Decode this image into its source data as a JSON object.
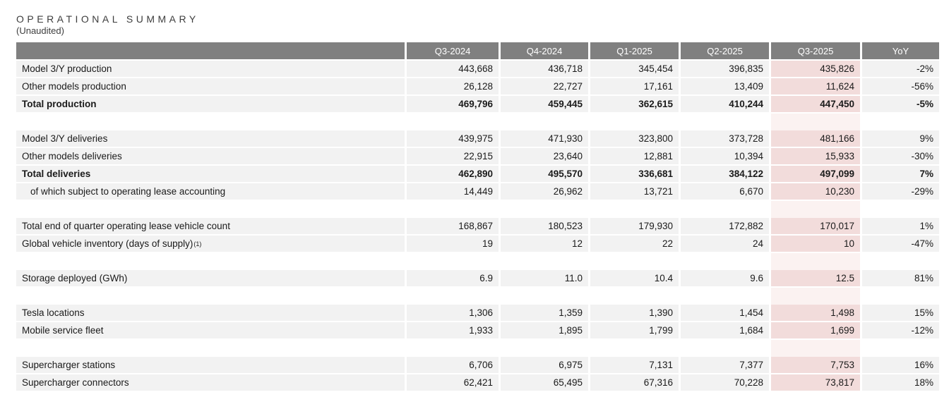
{
  "title": "OPERATIONAL SUMMARY",
  "subtitle": "(Unaudited)",
  "columns": [
    "Q3-2024",
    "Q4-2024",
    "Q1-2025",
    "Q2-2025",
    "Q3-2025",
    "YoY"
  ],
  "highlight_column": "Q3-2025",
  "colors": {
    "header_bg": "#808080",
    "row_bg": "#f2f2f2",
    "highlight_bg": "#f2dcdb",
    "highlight_gap_bg": "#fbf2f1",
    "header_text": "#ffffff",
    "body_text": "#1a1a1a"
  },
  "sections": [
    {
      "rows": [
        {
          "label": "Model 3/Y production",
          "bold": false,
          "indent": false,
          "values": [
            "443,668",
            "436,718",
            "345,454",
            "396,835",
            "435,826",
            "-2%"
          ]
        },
        {
          "label": "Other models production",
          "bold": false,
          "indent": false,
          "values": [
            "26,128",
            "22,727",
            "17,161",
            "13,409",
            "11,624",
            "-56%"
          ]
        },
        {
          "label": "Total production",
          "bold": true,
          "indent": false,
          "values": [
            "469,796",
            "459,445",
            "362,615",
            "410,244",
            "447,450",
            "-5%"
          ]
        }
      ]
    },
    {
      "rows": [
        {
          "label": "Model 3/Y deliveries",
          "bold": false,
          "indent": false,
          "values": [
            "439,975",
            "471,930",
            "323,800",
            "373,728",
            "481,166",
            "9%"
          ]
        },
        {
          "label": "Other models deliveries",
          "bold": false,
          "indent": false,
          "values": [
            "22,915",
            "23,640",
            "12,881",
            "10,394",
            "15,933",
            "-30%"
          ]
        },
        {
          "label": "Total deliveries",
          "bold": true,
          "indent": false,
          "values": [
            "462,890",
            "495,570",
            "336,681",
            "384,122",
            "497,099",
            "7%"
          ]
        },
        {
          "label": "of which subject to operating lease accounting",
          "bold": false,
          "indent": true,
          "values": [
            "14,449",
            "26,962",
            "13,721",
            "6,670",
            "10,230",
            "-29%"
          ]
        }
      ]
    },
    {
      "rows": [
        {
          "label": "Total end of quarter operating lease vehicle count",
          "bold": false,
          "indent": false,
          "values": [
            "168,867",
            "180,523",
            "179,930",
            "172,882",
            "170,017",
            "1%"
          ]
        },
        {
          "label": "Global vehicle inventory (days of supply)",
          "sup": "(1)",
          "bold": false,
          "indent": false,
          "values": [
            "19",
            "12",
            "22",
            "24",
            "10",
            "-47%"
          ]
        }
      ]
    },
    {
      "rows": [
        {
          "label": "Storage deployed (GWh)",
          "bold": false,
          "indent": false,
          "values": [
            "6.9",
            "11.0",
            "10.4",
            "9.6",
            "12.5",
            "81%"
          ]
        }
      ]
    },
    {
      "rows": [
        {
          "label": "Tesla locations",
          "bold": false,
          "indent": false,
          "values": [
            "1,306",
            "1,359",
            "1,390",
            "1,454",
            "1,498",
            "15%"
          ]
        },
        {
          "label": "Mobile service fleet",
          "bold": false,
          "indent": false,
          "values": [
            "1,933",
            "1,895",
            "1,799",
            "1,684",
            "1,699",
            "-12%"
          ]
        }
      ]
    },
    {
      "rows": [
        {
          "label": "Supercharger stations",
          "bold": false,
          "indent": false,
          "values": [
            "6,706",
            "6,975",
            "7,131",
            "7,377",
            "7,753",
            "16%"
          ]
        },
        {
          "label": "Supercharger connectors",
          "bold": false,
          "indent": false,
          "values": [
            "62,421",
            "65,495",
            "67,316",
            "70,228",
            "73,817",
            "18%"
          ]
        }
      ]
    }
  ]
}
